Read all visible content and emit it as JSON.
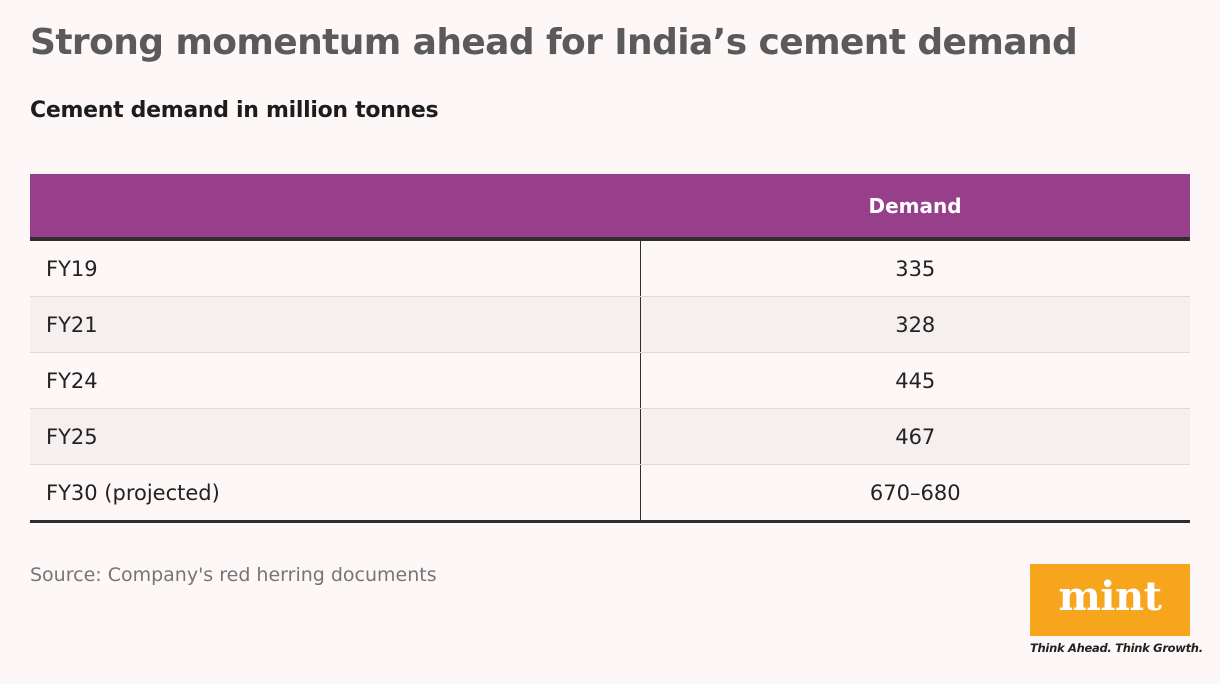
{
  "chart_data": {
    "type": "table",
    "title": "Strong momentum ahead for India’s cement demand",
    "subtitle": "Cement demand in million tonnes",
    "columns": [
      "",
      "Demand"
    ],
    "rows": [
      {
        "label": "FY19",
        "value": "335"
      },
      {
        "label": "FY21",
        "value": "328"
      },
      {
        "label": "FY24",
        "value": "445"
      },
      {
        "label": "FY25",
        "value": "467"
      },
      {
        "label": "FY30 (projected)",
        "value": "670–680"
      }
    ],
    "source": "Source: Company's red herring documents"
  },
  "branding": {
    "logo_text": "mint",
    "tagline": "Think Ahead. Think Growth.",
    "logo_color": "#f7a51c"
  },
  "colors": {
    "header_bg": "#983f8b",
    "page_bg": "#fdf8f7",
    "title_text": "#5a5a5a"
  }
}
